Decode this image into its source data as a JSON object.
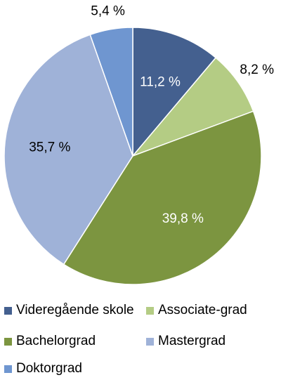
{
  "chart_data": {
    "type": "pie",
    "title": "",
    "slices": [
      {
        "label": "Videregående skole",
        "value": 11.2,
        "value_label": "11,2 %",
        "color": "#44608f"
      },
      {
        "label": "Associate-grad",
        "value": 8.2,
        "value_label": "8,2 %",
        "color": "#b4cc84"
      },
      {
        "label": "Bachelorgrad",
        "value": 39.8,
        "value_label": "39,8 %",
        "color": "#7c9540"
      },
      {
        "label": "Mastergrad",
        "value": 35.7,
        "value_label": "35,7 %",
        "color": "#9fb2d8"
      },
      {
        "label": "Doktorgrad",
        "value": 5.4,
        "value_label": "5,4 %",
        "color": "#6f96d0"
      }
    ],
    "legend_position": "bottom",
    "start_angle": "top",
    "direction": "clockwise"
  }
}
